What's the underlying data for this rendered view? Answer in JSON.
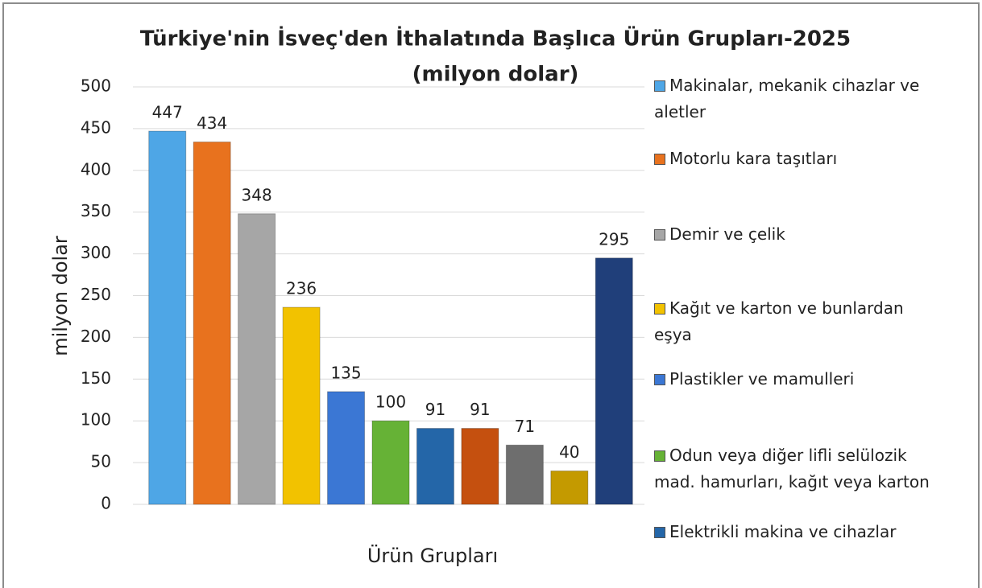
{
  "chart_data": {
    "type": "bar",
    "title": "Türkiye'nin İsveç'den İthalatında Başlıca Ürün Grupları-2025",
    "subtitle": "(milyon dolar)",
    "y_label": "milyon dolar",
    "x_label": "Ürün Grupları",
    "categories": [
      "Makinalar, mekanik cihazlar ve aletler",
      "Motorlu kara taşıtları",
      "Demir ve çelik",
      "Kağıt ve karton ve bunlardan eşya",
      "Plastikler ve mamulleri",
      "Odun veya diğer lifli selülozik mad. hamurları, kağıt veya karton",
      "Elektrikli makina ve cihazlar",
      null,
      null,
      null,
      null
    ],
    "values": [
      447,
      434,
      348,
      236,
      135,
      100,
      91,
      91,
      71,
      40,
      295
    ],
    "colors": [
      "#4ea6e6",
      "#e8721e",
      "#a6a6a6",
      "#f2c200",
      "#3b77d4",
      "#66b236",
      "#2466a8",
      "#c5500f",
      "#6e6e6e",
      "#c49a00",
      "#203f7a"
    ],
    "ylim": [
      0,
      500
    ],
    "yticks": [
      0,
      50,
      100,
      150,
      200,
      250,
      300,
      350,
      400,
      450,
      500
    ],
    "grid": true,
    "legend": "right"
  }
}
